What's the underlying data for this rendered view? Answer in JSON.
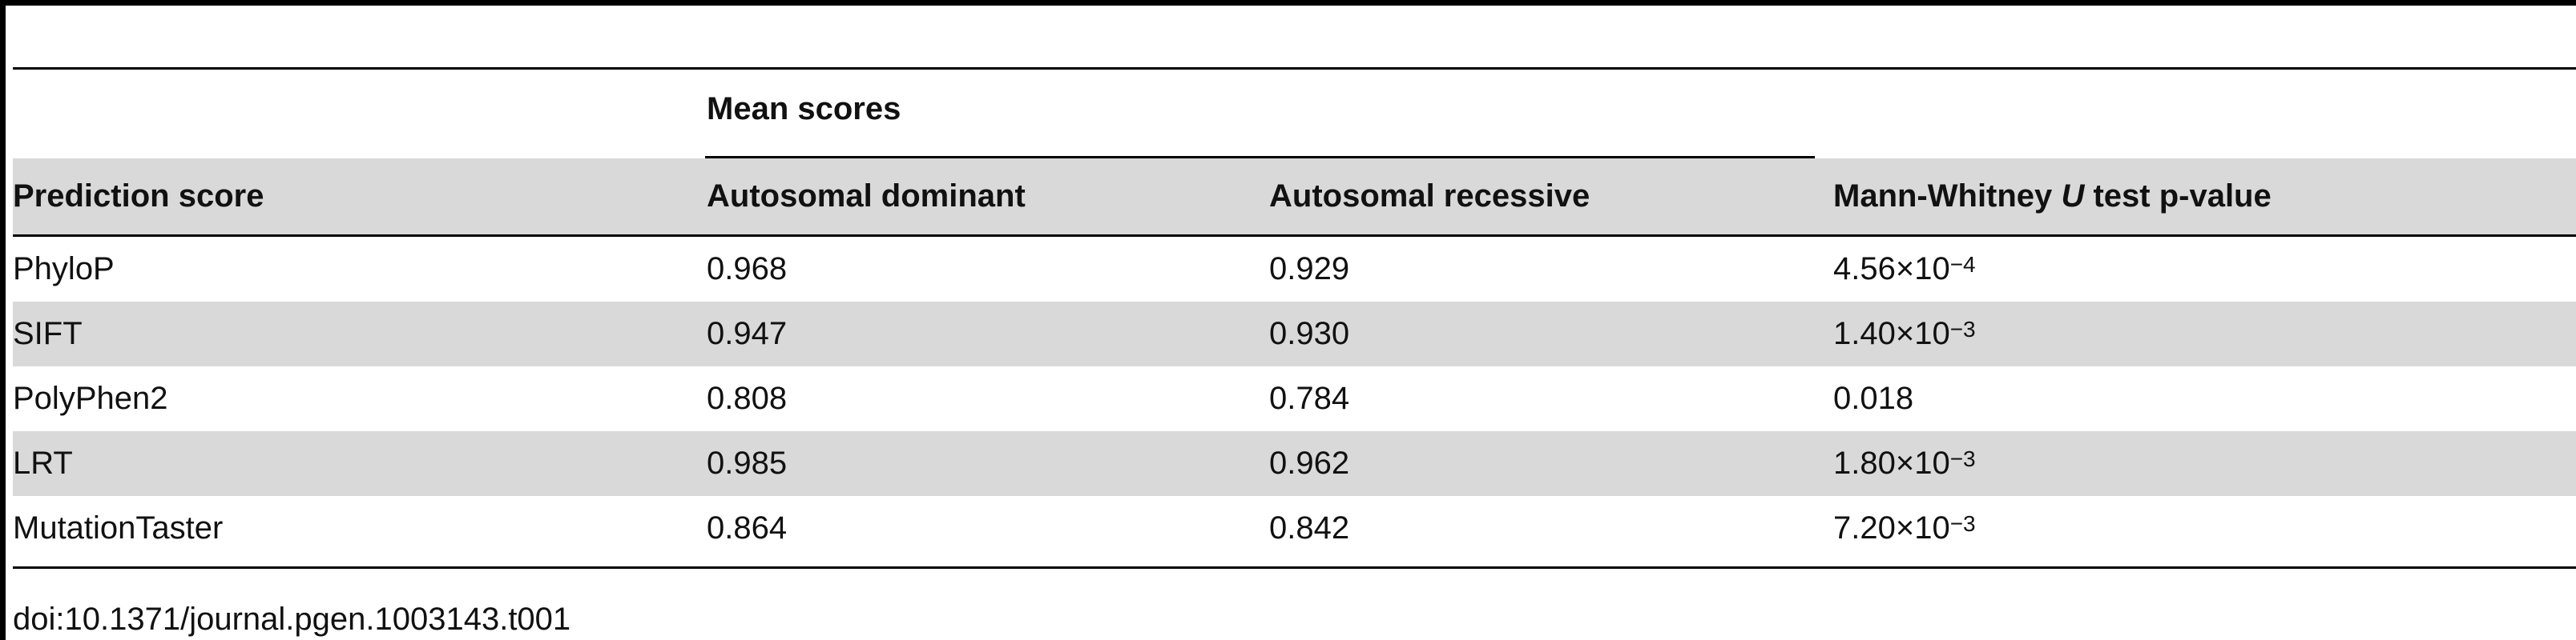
{
  "table": {
    "header_group": "Mean scores",
    "col_prediction": "Prediction score",
    "col_ad": "Autosomal dominant",
    "col_ar": "Autosomal recessive",
    "col_p_prefix": "Mann-Whitney",
    "col_p_italic": "U",
    "col_p_suffix": "test p-value",
    "rows": [
      {
        "name": "PhyloP",
        "ad": "0.968",
        "ar": "0.929",
        "p_mant": "4.56×10",
        "p_exp": "−4"
      },
      {
        "name": "SIFT",
        "ad": "0.947",
        "ar": "0.930",
        "p_mant": "1.40×10",
        "p_exp": "−3"
      },
      {
        "name": "PolyPhen2",
        "ad": "0.808",
        "ar": "0.784",
        "p_mant": "0.018",
        "p_exp": ""
      },
      {
        "name": "LRT",
        "ad": "0.985",
        "ar": "0.962",
        "p_mant": "1.80×10",
        "p_exp": "−3"
      },
      {
        "name": "MutationTaster",
        "ad": "0.864",
        "ar": "0.842",
        "p_mant": "7.20×10",
        "p_exp": "−3"
      }
    ]
  },
  "caption": "doi:10.1371/journal.pgen.1003143.t001"
}
